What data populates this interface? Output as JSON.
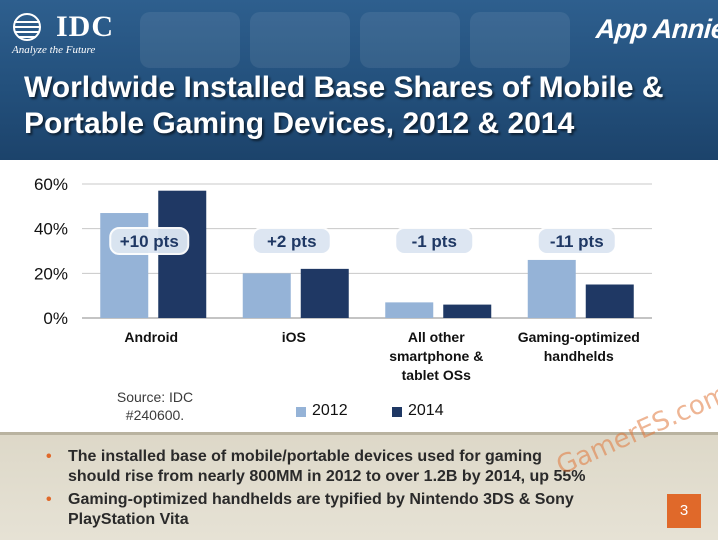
{
  "header": {
    "idc_brand": "IDC",
    "idc_tagline": "Analyze the Future",
    "app_annie_brand": "App Annie",
    "title": "Worldwide Installed Base Shares of Mobile & Portable Gaming Devices, 2012 & 2014"
  },
  "colors": {
    "series_2012": "#95b3d7",
    "series_2014": "#1f3864",
    "accent_orange": "#e0692a",
    "header_blue": "#23507c"
  },
  "chart_data": {
    "type": "bar",
    "categories": [
      [
        "Android"
      ],
      [
        "iOS"
      ],
      [
        "All other",
        "smartphone &",
        "tablet OSs"
      ],
      [
        "Gaming-optimized",
        "handhelds"
      ]
    ],
    "series": [
      {
        "name": "2012",
        "values": [
          47,
          20,
          7,
          26
        ]
      },
      {
        "name": "2014",
        "values": [
          57,
          22,
          6,
          15
        ]
      }
    ],
    "annotations": [
      "+10 pts",
      "+2 pts",
      "-1 pts",
      "-11 pts"
    ],
    "yticks": [
      "0%",
      "20%",
      "40%",
      "60%"
    ],
    "ylim": [
      0,
      60
    ],
    "grid": true,
    "legend_position": "bottom"
  },
  "source_note": [
    "Source: IDC",
    "#240600."
  ],
  "bullets": [
    [
      "The installed base of mobile/portable devices used for gaming",
      "should rise from nearly 800MM in 2012 to over 1.2B by 2014, up 55%"
    ],
    [
      "Gaming-optimized handhelds are typified by Nintendo 3DS & Sony",
      "PlayStation Vita"
    ]
  ],
  "watermark": "GamerES.com",
  "page_number": "3"
}
